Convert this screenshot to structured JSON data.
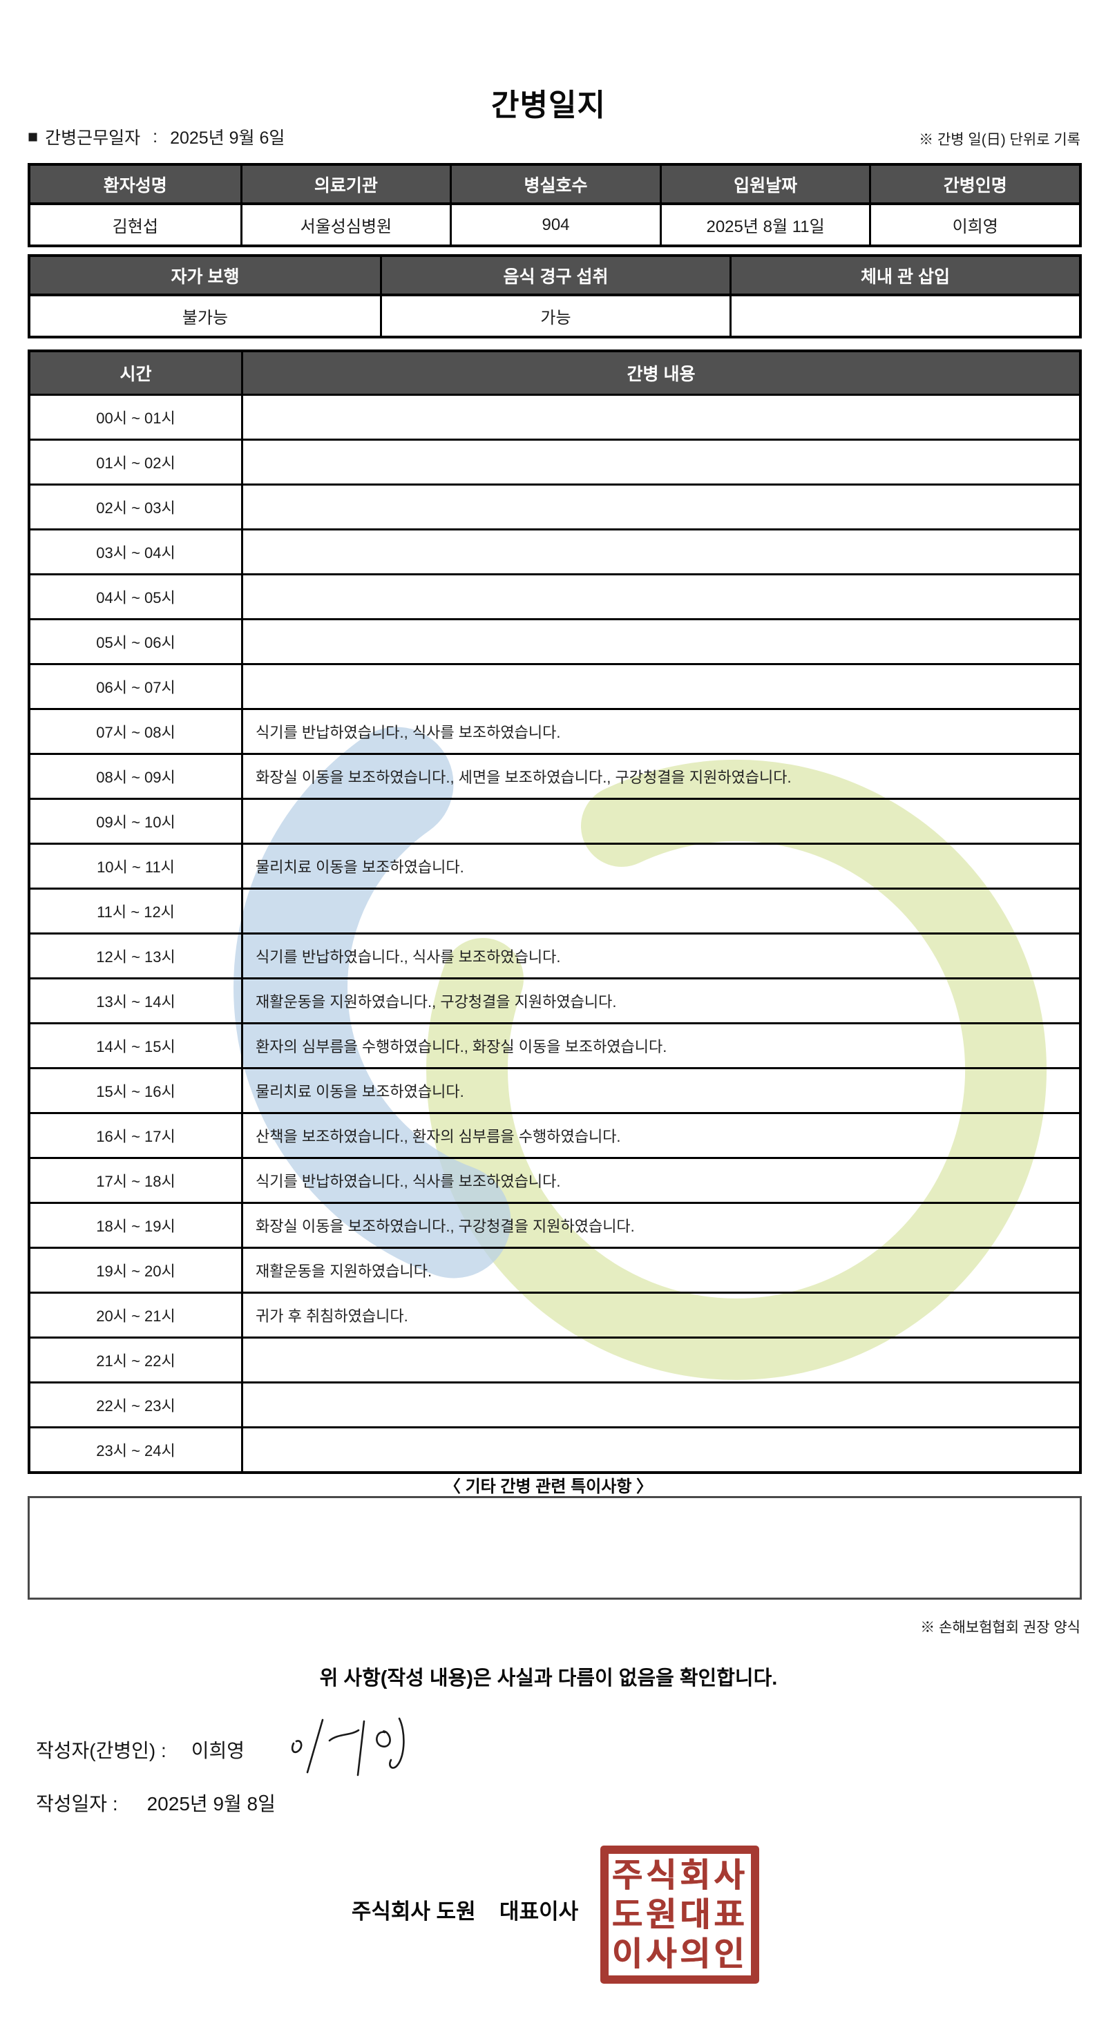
{
  "title": "간병일지",
  "meta": {
    "bullet": "■",
    "duty_date_label": "간병근무일자",
    "separator": ":",
    "duty_date": "2025년 9월 6일",
    "unit_note": "※ 간병 일(日) 단위로 기록"
  },
  "patient_table": {
    "headers": [
      "환자성명",
      "의료기관",
      "병실호수",
      "입원날짜",
      "간병인명"
    ],
    "values": [
      "김현섭",
      "서울성심병원",
      "904",
      "2025년 8월 11일",
      "이희영"
    ]
  },
  "condition_table": {
    "headers": [
      "자가 보행",
      "음식 경구 섭취",
      "체내 관 삽입"
    ],
    "values": [
      "불가능",
      "가능",
      ""
    ]
  },
  "care_table": {
    "time_header": "시간",
    "content_header": "간병 내용",
    "rows": [
      {
        "time": "00시 ~ 01시",
        "content": ""
      },
      {
        "time": "01시 ~ 02시",
        "content": ""
      },
      {
        "time": "02시 ~ 03시",
        "content": ""
      },
      {
        "time": "03시 ~ 04시",
        "content": ""
      },
      {
        "time": "04시 ~ 05시",
        "content": ""
      },
      {
        "time": "05시 ~ 06시",
        "content": ""
      },
      {
        "time": "06시 ~ 07시",
        "content": ""
      },
      {
        "time": "07시 ~ 08시",
        "content": "식기를 반납하였습니다., 식사를 보조하였습니다."
      },
      {
        "time": "08시 ~ 09시",
        "content": "화장실 이동을 보조하였습니다., 세면을 보조하였습니다., 구강청결을 지원하였습니다."
      },
      {
        "time": "09시 ~ 10시",
        "content": ""
      },
      {
        "time": "10시 ~ 11시",
        "content": "물리치료 이동을 보조하였습니다."
      },
      {
        "time": "11시 ~ 12시",
        "content": ""
      },
      {
        "time": "12시 ~ 13시",
        "content": "식기를 반납하였습니다., 식사를 보조하였습니다."
      },
      {
        "time": "13시 ~ 14시",
        "content": "재활운동을 지원하였습니다., 구강청결을 지원하였습니다."
      },
      {
        "time": "14시 ~ 15시",
        "content": "환자의 심부름을 수행하였습니다., 화장실 이동을 보조하였습니다."
      },
      {
        "time": "15시 ~ 16시",
        "content": "물리치료 이동을 보조하였습니다."
      },
      {
        "time": "16시 ~ 17시",
        "content": "산책을 보조하였습니다., 환자의 심부름을 수행하였습니다."
      },
      {
        "time": "17시 ~ 18시",
        "content": "식기를 반납하였습니다., 식사를 보조하였습니다."
      },
      {
        "time": "18시 ~ 19시",
        "content": "화장실 이동을 보조하였습니다., 구강청결을 지원하였습니다."
      },
      {
        "time": "19시 ~ 20시",
        "content": "재활운동을 지원하였습니다."
      },
      {
        "time": "20시 ~ 21시",
        "content": "귀가 후 취침하였습니다."
      },
      {
        "time": "21시 ~ 22시",
        "content": ""
      },
      {
        "time": "22시 ~ 23시",
        "content": ""
      },
      {
        "time": "23시 ~ 24시",
        "content": ""
      }
    ]
  },
  "notes": {
    "title": "〈 기타 간병 관련 특이사항 〉",
    "content": "",
    "form_note": "※ 손해보험협회 권장 양식"
  },
  "confirmation": "위 사항(작성 내용)은 사실과 다름이 없음을 확인합니다.",
  "signature": {
    "writer_label": "작성자(간병인) :",
    "writer_name": "이희영",
    "date_label": "작성일자 :",
    "date_value": "2025년 9월 8일"
  },
  "company": {
    "name_line": "주식회사 도원    대표이사",
    "seal_lines": [
      "주식회사",
      "도원대표",
      "이사의인"
    ]
  },
  "colors": {
    "table_header_bg": "#515151",
    "table_border": "#000000",
    "seal_red": "#a63a32",
    "watermark_blue": "#b9d0e6",
    "watermark_green": "#dee8b0"
  }
}
